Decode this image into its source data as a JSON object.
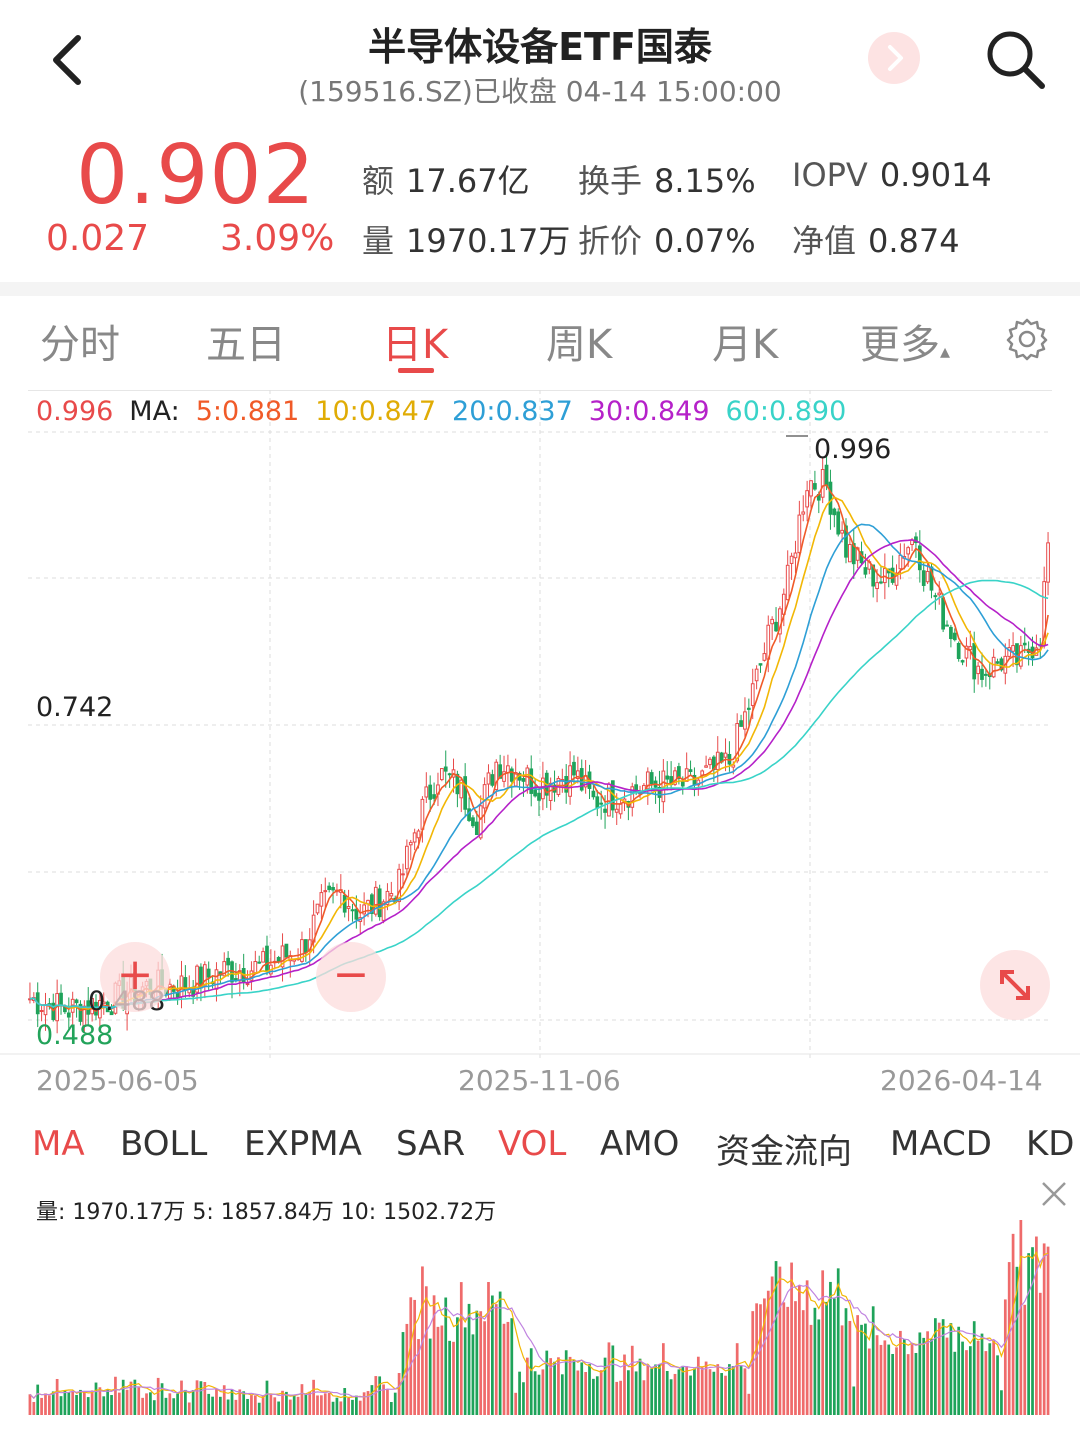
{
  "header": {
    "title": "半导体设备ETF国泰",
    "subtitle": "(159516.SZ)已收盘 04-14 15:00:00",
    "back_icon": "chevron-left-icon",
    "next_icon": "chevron-right-icon",
    "search_icon": "search-icon"
  },
  "quote": {
    "price": "0.902",
    "change": "0.027",
    "change_pct": "3.09%",
    "color_up": "#e84a4a",
    "stats": [
      {
        "key": "额",
        "value": "17.67亿"
      },
      {
        "key": "换手",
        "value": "8.15%"
      },
      {
        "key": "IOPV",
        "value": "0.9014"
      },
      {
        "key": "量",
        "value": "1970.17万"
      },
      {
        "key": "折价",
        "value": "0.07%"
      },
      {
        "key": "净值",
        "value": "0.874"
      }
    ]
  },
  "tabs": [
    {
      "label": "分时",
      "active": false
    },
    {
      "label": "五日",
      "active": false
    },
    {
      "label": "日K",
      "active": true
    },
    {
      "label": "周K",
      "active": false
    },
    {
      "label": "月K",
      "active": false
    },
    {
      "label": "更多",
      "active": false
    }
  ],
  "more_caret": "▴",
  "settings_icon": "gear-icon",
  "ma_legend": {
    "high": "0.996",
    "prefix": "MA:",
    "ma5": "5:0.881",
    "ma10": "10:0.847",
    "ma20": "20:0.837",
    "ma30": "30:0.849",
    "ma60": "60:0.890",
    "colors": {
      "ma5": "#f05a28",
      "ma10": "#f2b705",
      "ma20": "#2e9fd6",
      "ma30": "#b521c9",
      "ma60": "#39d3c8"
    }
  },
  "chart_labels": {
    "axis_max_hint": "0.742",
    "high_mark": "0.996",
    "low_mark": "0.488",
    "axis_min": "0.488"
  },
  "x_axis": [
    "2025-06-05",
    "2025-11-06",
    "2026-04-14"
  ],
  "zoom": {
    "plus_icon": "zoom-in-icon",
    "plus": "+",
    "minus_icon": "zoom-out-icon",
    "minus": "−",
    "expand_icon": "expand-icon"
  },
  "indicator_tabs": [
    {
      "label": "MA",
      "active": true
    },
    {
      "label": "BOLL",
      "active": false
    },
    {
      "label": "EXPMA",
      "active": false
    },
    {
      "label": "SAR",
      "active": false
    },
    {
      "label": "VOL",
      "active": true
    },
    {
      "label": "AMO",
      "active": false
    },
    {
      "label": "资金流向",
      "active": false
    },
    {
      "label": "MACD",
      "active": false
    },
    {
      "label": "KD",
      "active": false
    }
  ],
  "volume_legend": {
    "text": "量:  1970.17万  5:  1857.84万  10:  1502.72万"
  },
  "chart_data": {
    "type": "candlestick",
    "x_labels": [
      "2025-06-05",
      "2025-11-06",
      "2026-04-14"
    ],
    "ylim": [
      0.488,
      0.996
    ],
    "price_knots": [
      [
        0,
        0.5
      ],
      [
        10,
        0.49
      ],
      [
        20,
        0.498
      ],
      [
        30,
        0.51
      ],
      [
        40,
        0.512
      ],
      [
        50,
        0.525
      ],
      [
        60,
        0.528
      ],
      [
        70,
        0.545
      ],
      [
        75,
        0.58
      ],
      [
        80,
        0.595
      ],
      [
        85,
        0.575
      ],
      [
        95,
        0.6
      ],
      [
        100,
        0.66
      ],
      [
        105,
        0.7
      ],
      [
        110,
        0.69
      ],
      [
        115,
        0.66
      ],
      [
        120,
        0.71
      ],
      [
        125,
        0.705
      ],
      [
        130,
        0.69
      ],
      [
        140,
        0.7
      ],
      [
        145,
        0.675
      ],
      [
        150,
        0.68
      ],
      [
        160,
        0.69
      ],
      [
        170,
        0.69
      ],
      [
        175,
        0.7
      ],
      [
        180,
        0.71
      ],
      [
        185,
        0.76
      ],
      [
        190,
        0.82
      ],
      [
        195,
        0.87
      ],
      [
        200,
        0.96
      ],
      [
        205,
        0.955
      ],
      [
        210,
        0.9
      ],
      [
        215,
        0.88
      ],
      [
        220,
        0.87
      ],
      [
        225,
        0.9
      ],
      [
        228,
        0.91
      ],
      [
        230,
        0.88
      ],
      [
        235,
        0.84
      ],
      [
        240,
        0.81
      ],
      [
        245,
        0.79
      ],
      [
        250,
        0.8
      ],
      [
        255,
        0.8
      ],
      [
        260,
        0.825
      ],
      [
        262,
        0.902
      ]
    ],
    "volume": {
      "series": [
        "量",
        "5",
        "10"
      ],
      "latest": [
        1970.17,
        1857.84,
        1502.72
      ],
      "unit": "万"
    }
  }
}
